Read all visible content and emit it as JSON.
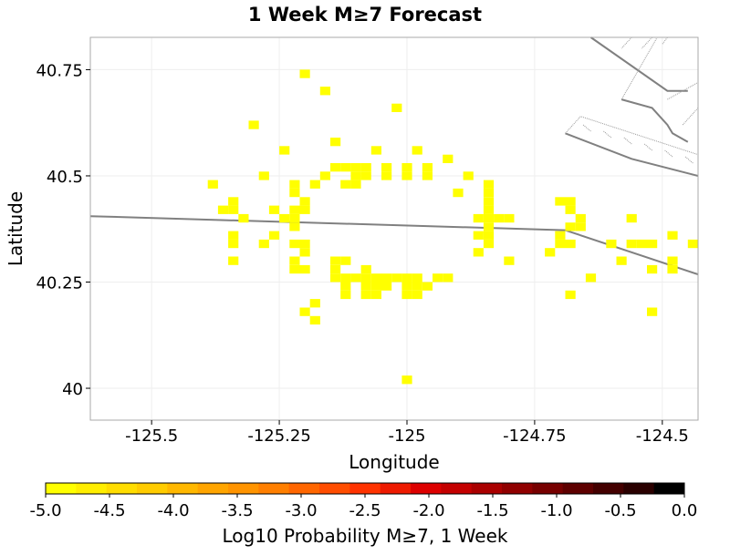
{
  "chart_data": {
    "type": "heatmap",
    "title": "1 Week M≥7 Forecast",
    "xlabel": "Longitude",
    "ylabel": "Latitude",
    "xlim": [
      -125.62,
      -124.43
    ],
    "ylim": [
      39.925,
      40.826
    ],
    "x_ticks": [
      {
        "value": -125.5,
        "label": "-125.5"
      },
      {
        "value": -125.25,
        "label": "-125.25"
      },
      {
        "value": -125.0,
        "label": "-125"
      },
      {
        "value": -124.75,
        "label": "-124.75"
      },
      {
        "value": -124.5,
        "label": "-124.5"
      }
    ],
    "y_ticks": [
      {
        "value": 40.0,
        "label": "40"
      },
      {
        "value": 40.25,
        "label": "40.25"
      },
      {
        "value": 40.5,
        "label": "40.5"
      },
      {
        "value": 40.75,
        "label": "40.75"
      }
    ],
    "grid": true,
    "cell_size": 0.02,
    "cell_value": -5.0,
    "cell_color": "#ffff00",
    "cells": [
      [
        -125.2,
        40.74
      ],
      [
        -125.16,
        40.7
      ],
      [
        -125.02,
        40.66
      ],
      [
        -125.3,
        40.62
      ],
      [
        -125.14,
        40.58
      ],
      [
        -125.24,
        40.56
      ],
      [
        -125.06,
        40.56
      ],
      [
        -124.98,
        40.56
      ],
      [
        -124.92,
        40.54
      ],
      [
        -125.14,
        40.52
      ],
      [
        -125.12,
        40.52
      ],
      [
        -125.1,
        40.52
      ],
      [
        -125.08,
        40.52
      ],
      [
        -125.04,
        40.52
      ],
      [
        -125.0,
        40.52
      ],
      [
        -124.96,
        40.52
      ],
      [
        -125.28,
        40.5
      ],
      [
        -125.16,
        40.5
      ],
      [
        -125.1,
        40.5
      ],
      [
        -125.08,
        40.5
      ],
      [
        -125.04,
        40.5
      ],
      [
        -125.0,
        40.5
      ],
      [
        -124.96,
        40.5
      ],
      [
        -124.88,
        40.5
      ],
      [
        -125.38,
        40.48
      ],
      [
        -125.22,
        40.48
      ],
      [
        -125.18,
        40.48
      ],
      [
        -125.12,
        40.48
      ],
      [
        -125.1,
        40.48
      ],
      [
        -124.84,
        40.48
      ],
      [
        -125.22,
        40.46
      ],
      [
        -124.9,
        40.46
      ],
      [
        -124.84,
        40.46
      ],
      [
        -125.34,
        40.44
      ],
      [
        -125.2,
        40.44
      ],
      [
        -124.84,
        40.44
      ],
      [
        -124.7,
        40.44
      ],
      [
        -124.68,
        40.44
      ],
      [
        -125.36,
        40.42
      ],
      [
        -125.34,
        40.42
      ],
      [
        -125.26,
        40.42
      ],
      [
        -125.22,
        40.42
      ],
      [
        -125.2,
        40.42
      ],
      [
        -124.84,
        40.42
      ],
      [
        -124.68,
        40.42
      ],
      [
        -125.32,
        40.4
      ],
      [
        -125.24,
        40.4
      ],
      [
        -125.22,
        40.4
      ],
      [
        -124.86,
        40.4
      ],
      [
        -124.84,
        40.4
      ],
      [
        -124.82,
        40.4
      ],
      [
        -124.8,
        40.4
      ],
      [
        -124.66,
        40.4
      ],
      [
        -124.56,
        40.4
      ],
      [
        -125.22,
        40.38
      ],
      [
        -124.84,
        40.38
      ],
      [
        -124.68,
        40.38
      ],
      [
        -124.66,
        40.38
      ],
      [
        -125.34,
        40.36
      ],
      [
        -125.26,
        40.36
      ],
      [
        -124.86,
        40.36
      ],
      [
        -124.84,
        40.36
      ],
      [
        -124.7,
        40.36
      ],
      [
        -124.48,
        40.36
      ],
      [
        -125.34,
        40.34
      ],
      [
        -125.28,
        40.34
      ],
      [
        -125.22,
        40.34
      ],
      [
        -125.2,
        40.34
      ],
      [
        -124.84,
        40.34
      ],
      [
        -124.7,
        40.34
      ],
      [
        -124.68,
        40.34
      ],
      [
        -124.6,
        40.34
      ],
      [
        -124.56,
        40.34
      ],
      [
        -124.54,
        40.34
      ],
      [
        -124.52,
        40.34
      ],
      [
        -124.44,
        40.34
      ],
      [
        -125.2,
        40.32
      ],
      [
        -124.86,
        40.32
      ],
      [
        -124.72,
        40.32
      ],
      [
        -125.34,
        40.3
      ],
      [
        -125.22,
        40.3
      ],
      [
        -125.14,
        40.3
      ],
      [
        -125.12,
        40.3
      ],
      [
        -124.8,
        40.3
      ],
      [
        -124.58,
        40.3
      ],
      [
        -124.48,
        40.3
      ],
      [
        -125.22,
        40.28
      ],
      [
        -125.2,
        40.28
      ],
      [
        -125.14,
        40.28
      ],
      [
        -125.08,
        40.28
      ],
      [
        -124.52,
        40.28
      ],
      [
        -124.48,
        40.28
      ],
      [
        -125.14,
        40.26
      ],
      [
        -125.12,
        40.26
      ],
      [
        -125.1,
        40.26
      ],
      [
        -125.08,
        40.26
      ],
      [
        -125.06,
        40.26
      ],
      [
        -125.04,
        40.26
      ],
      [
        -125.02,
        40.26
      ],
      [
        -125.0,
        40.26
      ],
      [
        -124.98,
        40.26
      ],
      [
        -124.94,
        40.26
      ],
      [
        -124.92,
        40.26
      ],
      [
        -124.64,
        40.26
      ],
      [
        -125.12,
        40.24
      ],
      [
        -125.08,
        40.24
      ],
      [
        -125.06,
        40.24
      ],
      [
        -125.04,
        40.24
      ],
      [
        -125.0,
        40.24
      ],
      [
        -124.98,
        40.24
      ],
      [
        -124.96,
        40.24
      ],
      [
        -125.12,
        40.22
      ],
      [
        -125.08,
        40.22
      ],
      [
        -125.06,
        40.22
      ],
      [
        -125.0,
        40.22
      ],
      [
        -124.98,
        40.22
      ],
      [
        -124.68,
        40.22
      ],
      [
        -125.18,
        40.2
      ],
      [
        -125.2,
        40.18
      ],
      [
        -124.52,
        40.18
      ],
      [
        -125.18,
        40.16
      ],
      [
        -125.0,
        40.02
      ]
    ],
    "map_lines": [
      {
        "kind": "solid",
        "points": [
          [
            -125.62,
            40.405
          ],
          [
            -124.69,
            40.372
          ],
          [
            -124.43,
            40.268
          ]
        ]
      },
      {
        "kind": "solid",
        "points": [
          [
            -124.64,
            40.826
          ],
          [
            -124.49,
            40.7
          ],
          [
            -124.45,
            40.7
          ]
        ]
      },
      {
        "kind": "solid",
        "points": [
          [
            -124.58,
            40.68
          ],
          [
            -124.52,
            40.66
          ],
          [
            -124.49,
            40.62
          ],
          [
            -124.48,
            40.6
          ],
          [
            -124.45,
            40.58
          ]
        ]
      },
      {
        "kind": "solid",
        "points": [
          [
            -124.69,
            40.6
          ],
          [
            -124.56,
            40.54
          ],
          [
            -124.43,
            40.5
          ]
        ]
      },
      {
        "kind": "dotted",
        "points": [
          [
            -124.69,
            40.6
          ],
          [
            -124.66,
            40.64
          ],
          [
            -124.43,
            40.55
          ]
        ]
      },
      {
        "kind": "dotted",
        "points": [
          [
            -124.58,
            40.68
          ],
          [
            -124.51,
            40.826
          ]
        ]
      },
      {
        "kind": "dotted",
        "points": [
          [
            -124.49,
            40.68
          ],
          [
            -124.43,
            40.72
          ]
        ]
      },
      {
        "kind": "dotted",
        "points": [
          [
            -124.46,
            40.62
          ],
          [
            -124.43,
            40.66
          ]
        ]
      }
    ],
    "map_hatches": [
      [
        [
          -124.655,
          40.62
        ],
        [
          -124.64,
          40.605
        ]
      ],
      [
        [
          -124.615,
          40.605
        ],
        [
          -124.6,
          40.59
        ]
      ],
      [
        [
          -124.575,
          40.59
        ],
        [
          -124.56,
          40.575
        ]
      ],
      [
        [
          -124.535,
          40.575
        ],
        [
          -124.52,
          40.56
        ]
      ],
      [
        [
          -124.495,
          40.56
        ],
        [
          -124.48,
          40.545
        ]
      ],
      [
        [
          -124.455,
          40.545
        ],
        [
          -124.44,
          40.53
        ]
      ],
      [
        [
          -124.56,
          40.826
        ],
        [
          -124.58,
          40.8
        ]
      ],
      [
        [
          -124.52,
          40.826
        ],
        [
          -124.54,
          40.8
        ]
      ],
      [
        [
          -124.49,
          40.826
        ],
        [
          -124.5,
          40.81
        ]
      ]
    ],
    "colorbar": {
      "label": "Log10 Probability M≥7, 1 Week",
      "min": -5.0,
      "max": 0.0,
      "colors": [
        "#ffff00",
        "#ffee00",
        "#ffdd00",
        "#ffcc00",
        "#ffb800",
        "#ffa500",
        "#ff9400",
        "#ff7f00",
        "#ff6600",
        "#ff4d00",
        "#ff3300",
        "#ee1a00",
        "#dd0000",
        "#c40000",
        "#aa0000",
        "#900000",
        "#770000",
        "#5e0000",
        "#440000",
        "#2a0000",
        "#000000"
      ],
      "ticks": [
        {
          "value": -5.0,
          "label": "-5.0"
        },
        {
          "value": -4.5,
          "label": "-4.5"
        },
        {
          "value": -4.0,
          "label": "-4.0"
        },
        {
          "value": -3.5,
          "label": "-3.5"
        },
        {
          "value": -3.0,
          "label": "-3.0"
        },
        {
          "value": -2.5,
          "label": "-2.5"
        },
        {
          "value": -2.0,
          "label": "-2.0"
        },
        {
          "value": -1.5,
          "label": "-1.5"
        },
        {
          "value": -1.0,
          "label": "-1.0"
        },
        {
          "value": -0.5,
          "label": "-0.5"
        },
        {
          "value": 0.0,
          "label": "0.0"
        }
      ]
    }
  }
}
